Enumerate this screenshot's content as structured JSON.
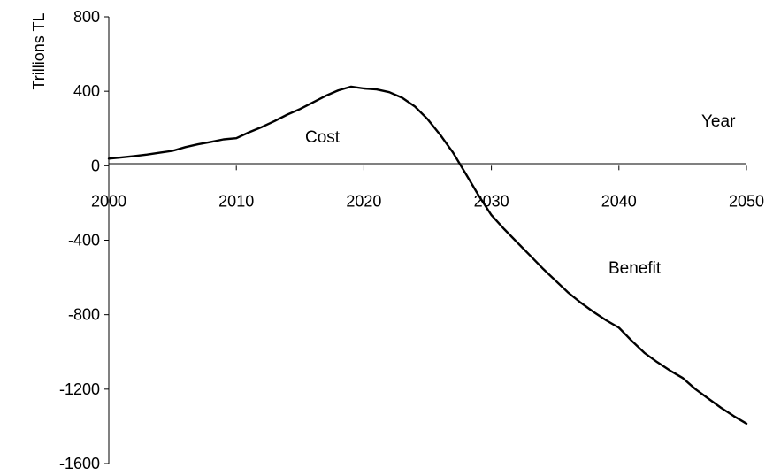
{
  "chart_data": {
    "type": "line",
    "title": "",
    "xlabel": "Year",
    "ylabel": "Trillions TL",
    "xlim": [
      2000,
      2050
    ],
    "ylim": [
      -1600,
      800
    ],
    "x_ticks": [
      "2000",
      "2010",
      "2020",
      "2030",
      "2040",
      "2050"
    ],
    "y_ticks": [
      "800",
      "400",
      "0",
      "-400",
      "-800",
      "-1200",
      "-1600"
    ],
    "grid": false,
    "legend": "none",
    "annotations": {
      "cost": "Cost",
      "benefit": "Benefit"
    },
    "series": [
      {
        "color": "#000000",
        "points": [
          [
            2000,
            38
          ],
          [
            2001,
            45
          ],
          [
            2002,
            52
          ],
          [
            2003,
            60
          ],
          [
            2004,
            70
          ],
          [
            2005,
            80
          ],
          [
            2006,
            100
          ],
          [
            2007,
            115
          ],
          [
            2008,
            128
          ],
          [
            2009,
            142
          ],
          [
            2010,
            148
          ],
          [
            2011,
            180
          ],
          [
            2012,
            208
          ],
          [
            2013,
            240
          ],
          [
            2014,
            275
          ],
          [
            2015,
            305
          ],
          [
            2016,
            340
          ],
          [
            2017,
            375
          ],
          [
            2018,
            405
          ],
          [
            2019,
            425
          ],
          [
            2020,
            415
          ],
          [
            2021,
            410
          ],
          [
            2022,
            395
          ],
          [
            2023,
            365
          ],
          [
            2024,
            318
          ],
          [
            2025,
            250
          ],
          [
            2026,
            165
          ],
          [
            2027,
            70
          ],
          [
            2028,
            -45
          ],
          [
            2029,
            -160
          ],
          [
            2030,
            -265
          ],
          [
            2031,
            -340
          ],
          [
            2032,
            -410
          ],
          [
            2033,
            -480
          ],
          [
            2034,
            -550
          ],
          [
            2035,
            -615
          ],
          [
            2036,
            -680
          ],
          [
            2037,
            -735
          ],
          [
            2038,
            -785
          ],
          [
            2039,
            -830
          ],
          [
            2040,
            -870
          ],
          [
            2041,
            -940
          ],
          [
            2042,
            -1005
          ],
          [
            2043,
            -1055
          ],
          [
            2044,
            -1100
          ],
          [
            2045,
            -1140
          ],
          [
            2046,
            -1200
          ],
          [
            2047,
            -1250
          ],
          [
            2048,
            -1300
          ],
          [
            2049,
            -1345
          ],
          [
            2050,
            -1385
          ]
        ]
      }
    ]
  }
}
